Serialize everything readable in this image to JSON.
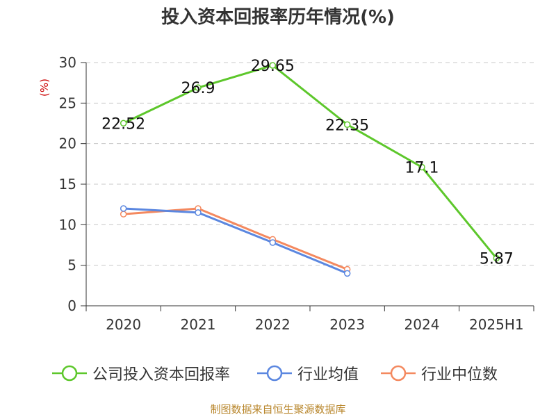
{
  "title": "投入资本回报率历年情况(%)",
  "source": "制图数据来自恒生聚源数据库",
  "chart_data": {
    "type": "line",
    "title": "投入资本回报率历年情况(%)",
    "ylabel": "(%)",
    "xlabel": "",
    "categories": [
      "2020",
      "2021",
      "2022",
      "2023",
      "2024",
      "2025H1"
    ],
    "yticks": [
      "0",
      "5",
      "10",
      "15",
      "20",
      "25",
      "30"
    ],
    "ylim": [
      0,
      30
    ],
    "grid": true,
    "legend_position": "bottom",
    "series": [
      {
        "name": "公司投入资本回报率",
        "color": "#5dc72b",
        "values": [
          22.52,
          26.9,
          29.65,
          22.35,
          17.1,
          5.87
        ],
        "labels": [
          "22.52",
          "26.9",
          "29.65",
          "22.35",
          "17.1",
          "5.87"
        ]
      },
      {
        "name": "行业均值",
        "color": "#5b87e0",
        "values": [
          12.0,
          11.5,
          7.8,
          4.0,
          null,
          null
        ]
      },
      {
        "name": "行业中位数",
        "color": "#f4895f",
        "values": [
          11.3,
          12.0,
          8.2,
          4.5,
          null,
          null
        ]
      }
    ]
  }
}
